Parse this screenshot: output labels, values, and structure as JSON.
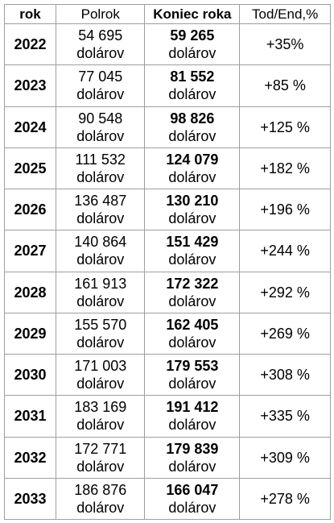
{
  "header": {
    "col_year": "rok",
    "col_half": "Polrok",
    "col_end": "Koniec roka",
    "col_pct": "Tod/End,%"
  },
  "rows": [
    {
      "year": "2022",
      "half": "54 695",
      "half_unit": "dolárov",
      "end": "59 265",
      "end_unit": "dolárov",
      "pct": "+35%"
    },
    {
      "year": "2023",
      "half": "77 045",
      "half_unit": "dolárov",
      "end": "81 552",
      "end_unit": "dolárov",
      "pct": "+85 %"
    },
    {
      "year": "2024",
      "half": "90 548",
      "half_unit": "dolárov",
      "end": "98 826",
      "end_unit": "dolárov",
      "pct": "+125 %"
    },
    {
      "year": "2025",
      "half": "111 532",
      "half_unit": "dolárov",
      "end": "124 079",
      "end_unit": "dolárov",
      "pct": "+182 %"
    },
    {
      "year": "2026",
      "half": "136 487",
      "half_unit": "dolárov",
      "end": "130 210",
      "end_unit": "dolárov",
      "pct": "+196 %"
    },
    {
      "year": "2027",
      "half": "140 864",
      "half_unit": "dolárov",
      "end": "151 429",
      "end_unit": "dolárov",
      "pct": "+244 %"
    },
    {
      "year": "2028",
      "half": "161 913",
      "half_unit": "dolárov",
      "end": "172 322",
      "end_unit": "dolárov",
      "pct": "+292 %"
    },
    {
      "year": "2029",
      "half": "155 570",
      "half_unit": "dolárov",
      "end": "162 405",
      "end_unit": "dolárov",
      "pct": "+269 %"
    },
    {
      "year": "2030",
      "half": "171 003",
      "half_unit": "dolárov",
      "end": "179 553",
      "end_unit": "dolárov",
      "pct": "+308 %"
    },
    {
      "year": "2031",
      "half": "183 169",
      "half_unit": "dolárov",
      "end": "191 412",
      "end_unit": "dolárov",
      "pct": "+335 %"
    },
    {
      "year": "2032",
      "half": "172 771",
      "half_unit": "dolárov",
      "end": "179 839",
      "end_unit": "dolárov",
      "pct": "+309 %"
    },
    {
      "year": "2033",
      "half": "186 876",
      "half_unit": "dolárov",
      "end": "166 047",
      "end_unit": "dolárov",
      "pct": "+278 %"
    }
  ],
  "colors": {
    "text": "#000000",
    "border": "#9e9e9e",
    "background": "#ffffff"
  }
}
